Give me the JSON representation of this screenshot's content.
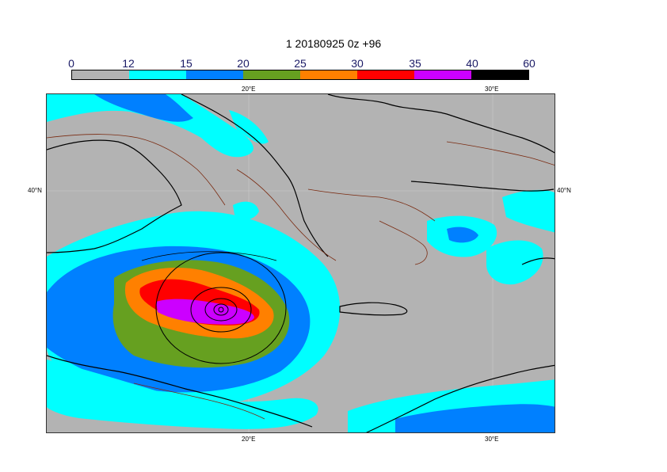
{
  "title": "1 20180925 0z +96",
  "colorbar": {
    "ticks": [
      "0",
      "12",
      "15",
      "20",
      "25",
      "30",
      "35",
      "40",
      "60"
    ],
    "colors": [
      "#b3b3b3",
      "#00ffff",
      "#0080ff",
      "#66a020",
      "#ff8000",
      "#ff0000",
      "#cc00ff",
      "#000000"
    ]
  },
  "axes": {
    "top_lon": [
      "20°E",
      "30°E"
    ],
    "bottom_lon": [
      "20°E",
      "30°E"
    ],
    "left_lat": "40°N",
    "right_lat": "40°N"
  },
  "colors": {
    "land_ocean_bg": "#b3b3b3",
    "coastline": "#000000",
    "contour_brown": "#7a2a10",
    "grid": "#cccccc"
  }
}
